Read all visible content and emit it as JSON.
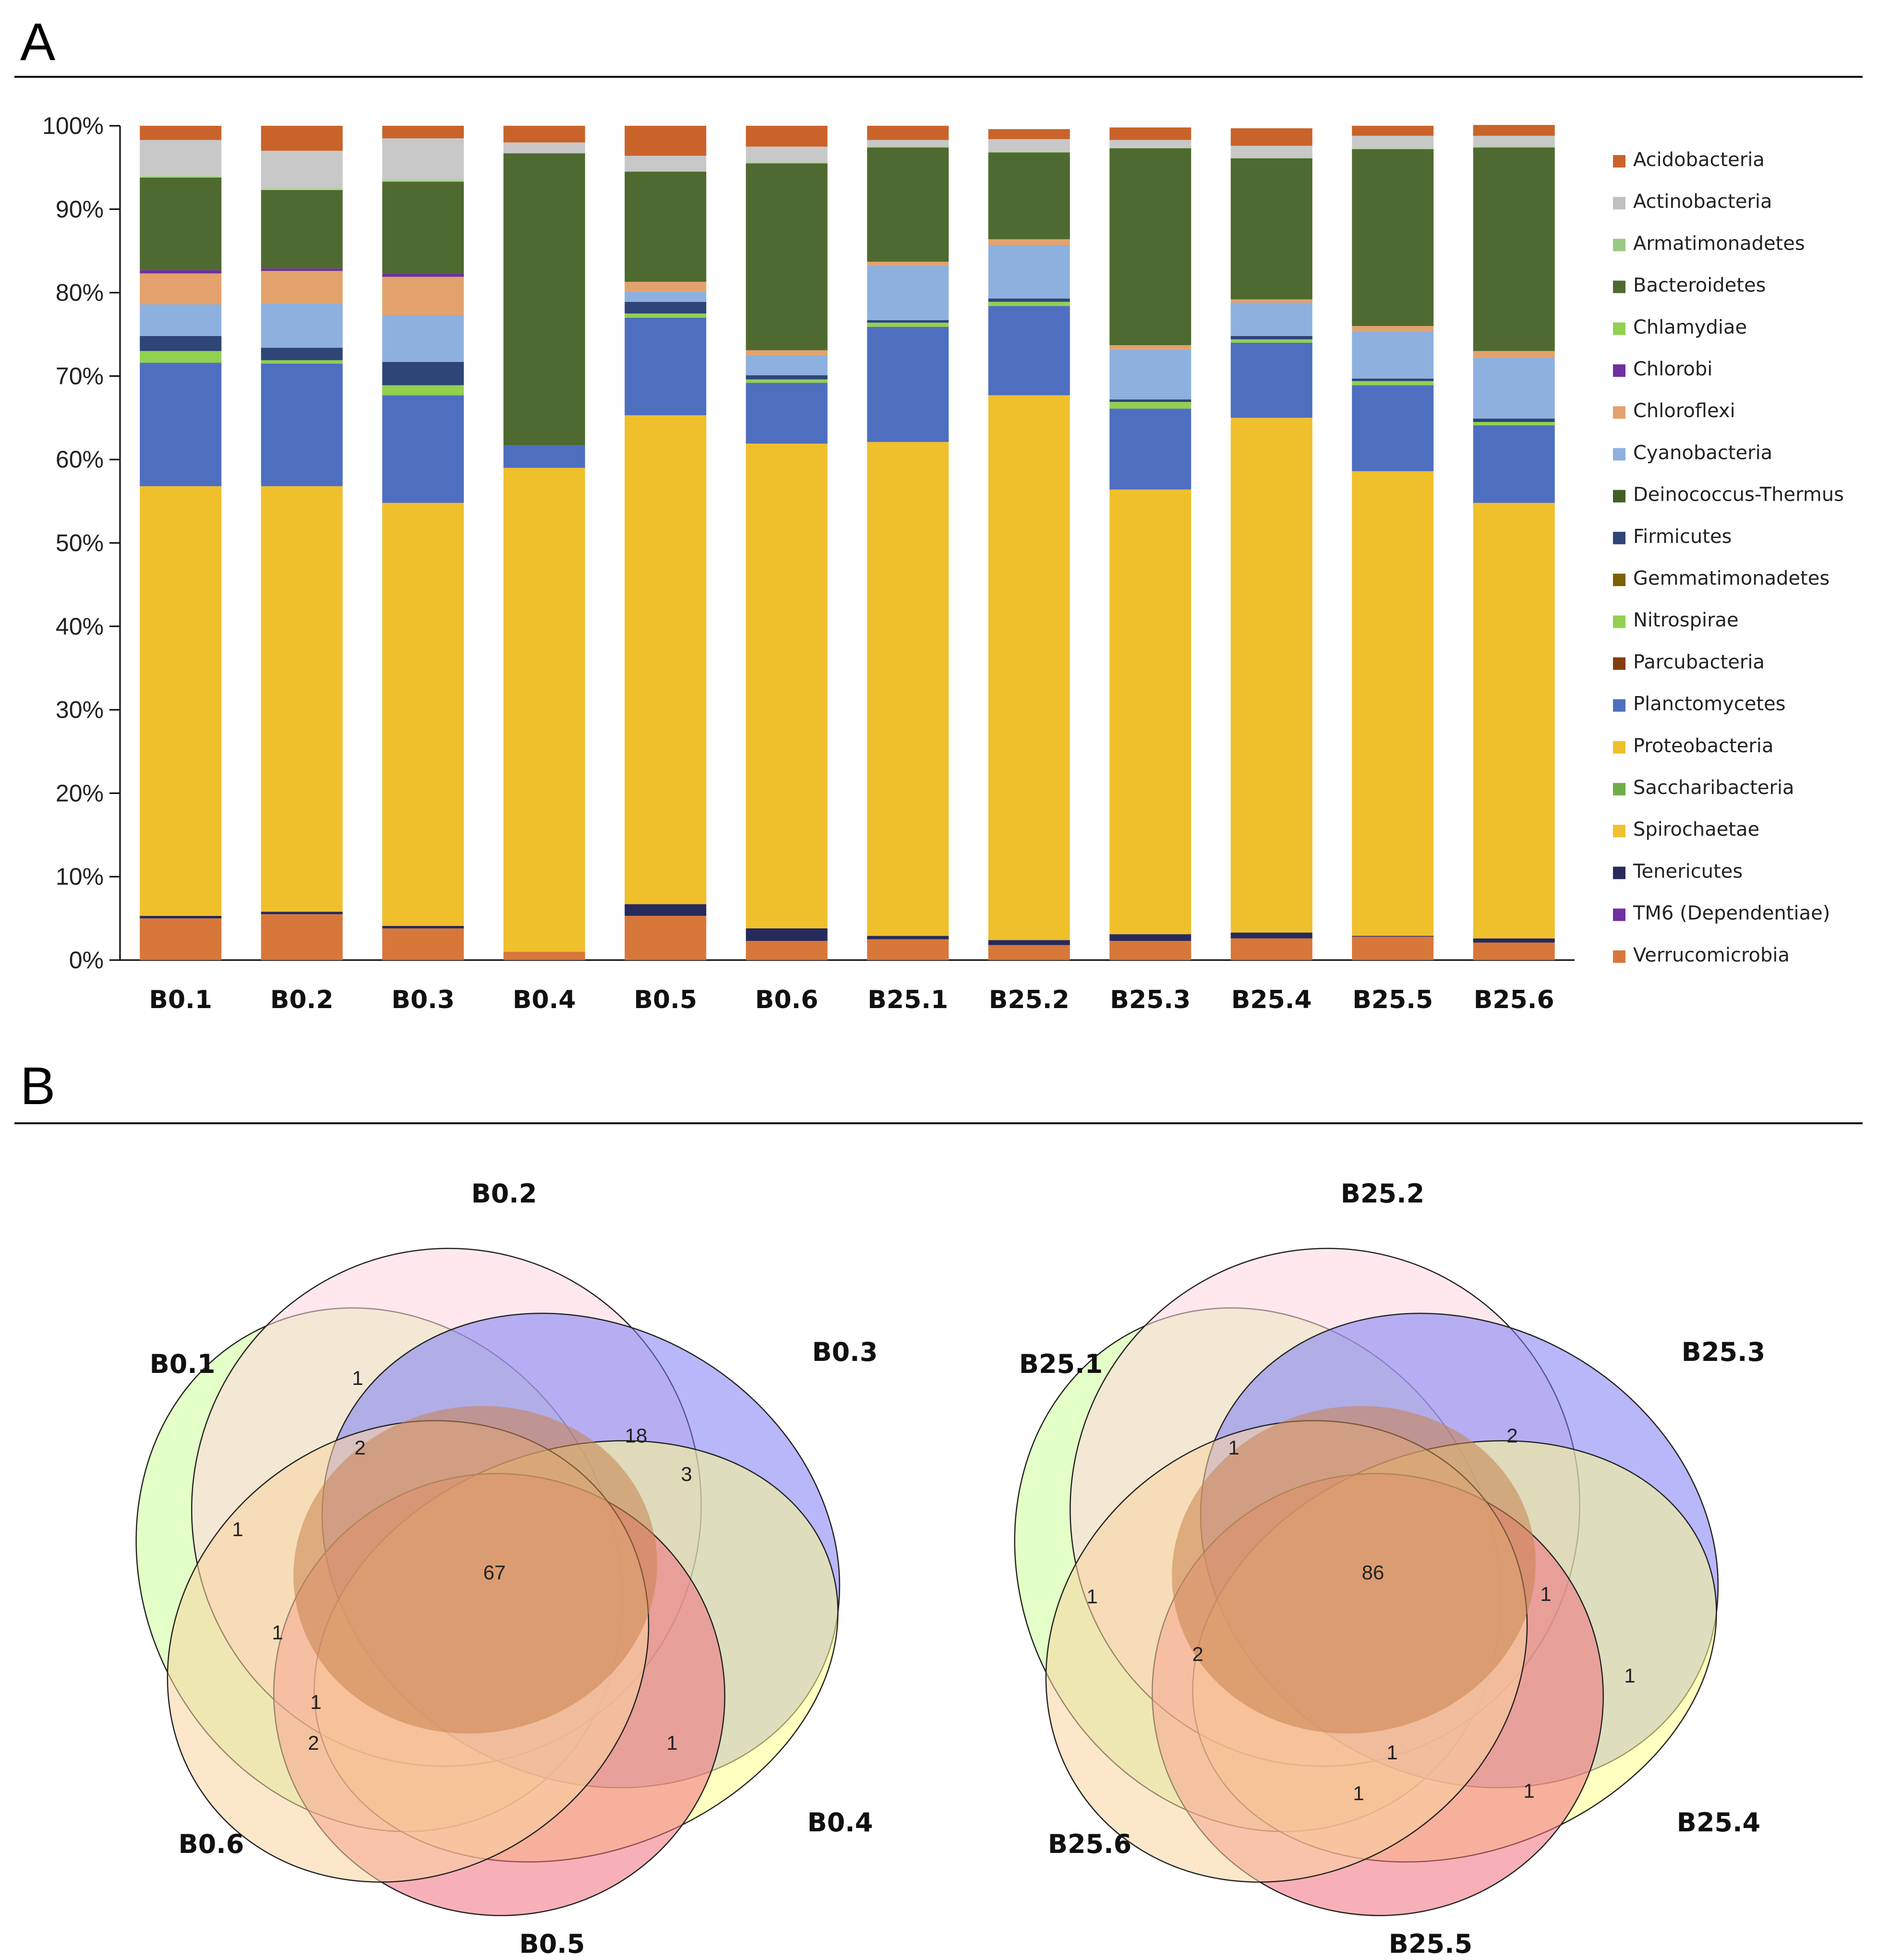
{
  "panels": {
    "a_label": "A",
    "b_label": "B"
  },
  "chart_data": [
    {
      "type": "bar",
      "stacked": true,
      "title": "",
      "xlabel": "",
      "ylabel": "",
      "ylim": [
        0,
        100
      ],
      "y_ticks": [
        "0%",
        "10%",
        "20%",
        "30%",
        "40%",
        "50%",
        "60%",
        "70%",
        "80%",
        "90%",
        "100%"
      ],
      "categories": [
        "B0.1",
        "B0.2",
        "B0.3",
        "B0.4",
        "B0.5",
        "B0.6",
        "B25.1",
        "B25.2",
        "B25.3",
        "B25.4",
        "B25.5",
        "B25.6"
      ],
      "legend_position": "right",
      "series": [
        {
          "name": "Verrucomicrobia",
          "color": "#D8773A",
          "values": [
            5.0,
            5.5,
            3.8,
            1.0,
            5.3,
            2.3,
            2.5,
            1.8,
            2.3,
            2.6,
            2.8,
            2.1
          ]
        },
        {
          "name": "TM6 (Dependentiae)",
          "color": "#7030A0",
          "values": [
            0,
            0,
            0,
            0,
            0,
            0,
            0,
            0,
            0,
            0,
            0,
            0
          ]
        },
        {
          "name": "Tenericutes",
          "color": "#262A5C",
          "values": [
            0.3,
            0.3,
            0.3,
            0,
            1.4,
            1.5,
            0.4,
            0.6,
            0.8,
            0.7,
            0.1,
            0.5
          ]
        },
        {
          "name": "Spirochaetae",
          "color": "#F0C030",
          "values": [
            0,
            0,
            0,
            0,
            0,
            0,
            0,
            0,
            0,
            0,
            0,
            0
          ]
        },
        {
          "name": "Saccharibacteria",
          "color": "#70AD47",
          "values": [
            0,
            0,
            0,
            0,
            0,
            0,
            0,
            0,
            0,
            0,
            0,
            0
          ]
        },
        {
          "name": "Proteobacteria",
          "color": "#EFBF2C",
          "values": [
            51.5,
            51.0,
            50.7,
            58.0,
            58.6,
            58.1,
            59.2,
            65.3,
            53.3,
            61.7,
            55.7,
            52.2
          ]
        },
        {
          "name": "Planctomycetes",
          "color": "#4E6EC0",
          "values": [
            14.8,
            14.7,
            12.9,
            2.7,
            11.7,
            7.3,
            13.8,
            10.7,
            9.7,
            9.0,
            10.3,
            9.3
          ]
        },
        {
          "name": "Parcubacteria",
          "color": "#843C0C",
          "values": [
            0,
            0,
            0,
            0,
            0,
            0,
            0,
            0,
            0,
            0,
            0,
            0
          ]
        },
        {
          "name": "Nitrospirae",
          "color": "#92D050",
          "values": [
            1.4,
            0.4,
            1.2,
            0,
            0.5,
            0.4,
            0.5,
            0.5,
            0.8,
            0.4,
            0.5,
            0.4
          ]
        },
        {
          "name": "Gemmatimonadetes",
          "color": "#7F6000",
          "values": [
            0,
            0,
            0,
            0,
            0,
            0,
            0,
            0,
            0,
            0,
            0,
            0
          ]
        },
        {
          "name": "Firmicutes",
          "color": "#2E4577",
          "values": [
            1.8,
            1.5,
            2.8,
            0,
            1.4,
            0.5,
            0.3,
            0.4,
            0.3,
            0.4,
            0.3,
            0.4
          ]
        },
        {
          "name": "Deinococcus-Thermus",
          "color": "#4B6B2F",
          "values": [
            0,
            0,
            0,
            0,
            0,
            0,
            0,
            0,
            0,
            0,
            0,
            0
          ]
        },
        {
          "name": "Cyanobacteria",
          "color": "#8DB0DF",
          "values": [
            3.8,
            5.3,
            5.6,
            0,
            1.2,
            2.4,
            6.5,
            6.4,
            6.0,
            4.0,
            5.7,
            7.3
          ]
        },
        {
          "name": "Chloroflexi",
          "color": "#E3A26C",
          "values": [
            3.7,
            3.9,
            4.6,
            0,
            1.2,
            0.6,
            0.5,
            0.7,
            0.5,
            0.4,
            0.6,
            0.8
          ]
        },
        {
          "name": "Chlorobi",
          "color": "#7030A0",
          "values": [
            0.4,
            0.3,
            0.4,
            0,
            0,
            0,
            0,
            0,
            0,
            0,
            0,
            0
          ]
        },
        {
          "name": "Chlamydiae",
          "color": "#A9D18E",
          "values": [
            0,
            0,
            0,
            0,
            0,
            0,
            0,
            0,
            0,
            0,
            0,
            0
          ]
        },
        {
          "name": "Bacteroidetes",
          "color": "#4E6A30",
          "values": [
            11.1,
            9.4,
            11.0,
            35.0,
            13.2,
            22.4,
            13.7,
            10.4,
            23.6,
            16.9,
            21.2,
            24.4
          ]
        },
        {
          "name": "Armatimonadetes",
          "color": "#A9D18E",
          "values": [
            0.2,
            0.2,
            0.2,
            0,
            0.1,
            0.1,
            0.1,
            0.1,
            0.1,
            0.1,
            0.1,
            0.1
          ]
        },
        {
          "name": "Actinobacteria",
          "color": "#C8C8C8",
          "values": [
            4.3,
            4.5,
            5.0,
            1.3,
            1.8,
            1.9,
            0.8,
            1.5,
            0.9,
            1.4,
            1.5,
            1.3
          ]
        },
        {
          "name": "Acidobacteria",
          "color": "#C9632A",
          "values": [
            1.7,
            3.0,
            1.5,
            2.0,
            3.6,
            2.5,
            1.7,
            1.2,
            1.5,
            2.1,
            1.2,
            1.3
          ]
        }
      ],
      "legend_entries": [
        {
          "name": "Acidobacteria",
          "color": "#C9632A"
        },
        {
          "name": "Actinobacteria",
          "color": "#C0C0C0"
        },
        {
          "name": "Armatimonadetes",
          "color": "#9BC985"
        },
        {
          "name": "Bacteroidetes",
          "color": "#4E6A30"
        },
        {
          "name": "Chlamydiae",
          "color": "#92D050"
        },
        {
          "name": "Chlorobi",
          "color": "#7030A0"
        },
        {
          "name": "Chloroflexi",
          "color": "#E3A26C"
        },
        {
          "name": "Cyanobacteria",
          "color": "#8DB0DF"
        },
        {
          "name": "Deinococcus-Thermus",
          "color": "#3F5F24"
        },
        {
          "name": "Firmicutes",
          "color": "#2E4577"
        },
        {
          "name": "Gemmatimonadetes",
          "color": "#7F6000"
        },
        {
          "name": "Nitrospirae",
          "color": "#92D050"
        },
        {
          "name": "Parcubacteria",
          "color": "#843C0C"
        },
        {
          "name": "Planctomycetes",
          "color": "#4E6EC0"
        },
        {
          "name": "Proteobacteria",
          "color": "#EFBF2C"
        },
        {
          "name": "Saccharibacteria",
          "color": "#70AD47"
        },
        {
          "name": "Spirochaetae",
          "color": "#F0C030"
        },
        {
          "name": "Tenericutes",
          "color": "#262A5C"
        },
        {
          "name": "TM6 (Dependentiae)",
          "color": "#7030A0"
        },
        {
          "name": "Verrucomicrobia",
          "color": "#D8773A"
        }
      ]
    },
    {
      "type": "venn",
      "sets": [
        {
          "name": "B0.1",
          "color": "#CCFF99"
        },
        {
          "name": "B0.2",
          "color": "#FFD6DE"
        },
        {
          "name": "B0.3",
          "color": "#7C7CF5"
        },
        {
          "name": "B0.4",
          "color": "#FFFF8C"
        },
        {
          "name": "B0.5",
          "color": "#F0707C"
        },
        {
          "name": "B0.6",
          "color": "#F9D3A0"
        }
      ],
      "counts": [
        {
          "label": "1",
          "sets": [
            "B0.1",
            "B0.2",
            "B0.6"
          ]
        },
        {
          "label": "2",
          "sets": [
            "B0.1",
            "B0.2",
            "B0.5",
            "B0.6"
          ]
        },
        {
          "label": "18",
          "sets": [
            "B0.2",
            "B0.3",
            "B0.4",
            "B0.5",
            "B0.6"
          ]
        },
        {
          "label": "3",
          "sets": [
            "B0.2",
            "B0.3",
            "B0.4"
          ]
        },
        {
          "label": "1",
          "sets": [
            "B0.1",
            "B0.6"
          ]
        },
        {
          "label": "67",
          "sets": [
            "B0.1",
            "B0.2",
            "B0.3",
            "B0.4",
            "B0.5",
            "B0.6"
          ]
        },
        {
          "label": "1",
          "sets": [
            "B0.1",
            "B0.5",
            "B0.6"
          ]
        },
        {
          "label": "1",
          "sets": [
            "B0.1",
            "B0.4",
            "B0.6"
          ]
        },
        {
          "label": "2",
          "sets": [
            "B0.1",
            "B0.6"
          ]
        },
        {
          "label": "1",
          "sets": [
            "B0.3",
            "B0.4",
            "B0.5"
          ]
        }
      ]
    },
    {
      "type": "venn",
      "sets": [
        {
          "name": "B25.1",
          "color": "#CCFF99"
        },
        {
          "name": "B25.2",
          "color": "#FFD6DE"
        },
        {
          "name": "B25.3",
          "color": "#7C7CF5"
        },
        {
          "name": "B25.4",
          "color": "#FFFF8C"
        },
        {
          "name": "B25.5",
          "color": "#F0707C"
        },
        {
          "name": "B25.6",
          "color": "#F9D3A0"
        }
      ],
      "counts": [
        {
          "label": "1",
          "sets": [
            "B25.1",
            "B25.2",
            "B25.6"
          ]
        },
        {
          "label": "2",
          "sets": [
            "B25.2",
            "B25.3",
            "B25.4",
            "B25.5",
            "B25.6"
          ]
        },
        {
          "label": "86",
          "sets": [
            "B25.1",
            "B25.2",
            "B25.3",
            "B25.4",
            "B25.5",
            "B25.6"
          ]
        },
        {
          "label": "1",
          "sets": [
            "B25.1",
            "B25.6"
          ]
        },
        {
          "label": "1",
          "sets": [
            "B25.3",
            "B25.4",
            "B25.5"
          ]
        },
        {
          "label": "2",
          "sets": [
            "B25.1",
            "B25.5",
            "B25.6"
          ]
        },
        {
          "label": "1",
          "sets": [
            "B25.3",
            "B25.4"
          ]
        },
        {
          "label": "1",
          "sets": [
            "B25.1",
            "B25.4",
            "B25.5",
            "B25.6"
          ]
        },
        {
          "label": "1",
          "sets": [
            "B25.4",
            "B25.5",
            "B25.6"
          ]
        },
        {
          "label": "1",
          "sets": [
            "B25.4",
            "B25.5"
          ]
        }
      ]
    }
  ]
}
